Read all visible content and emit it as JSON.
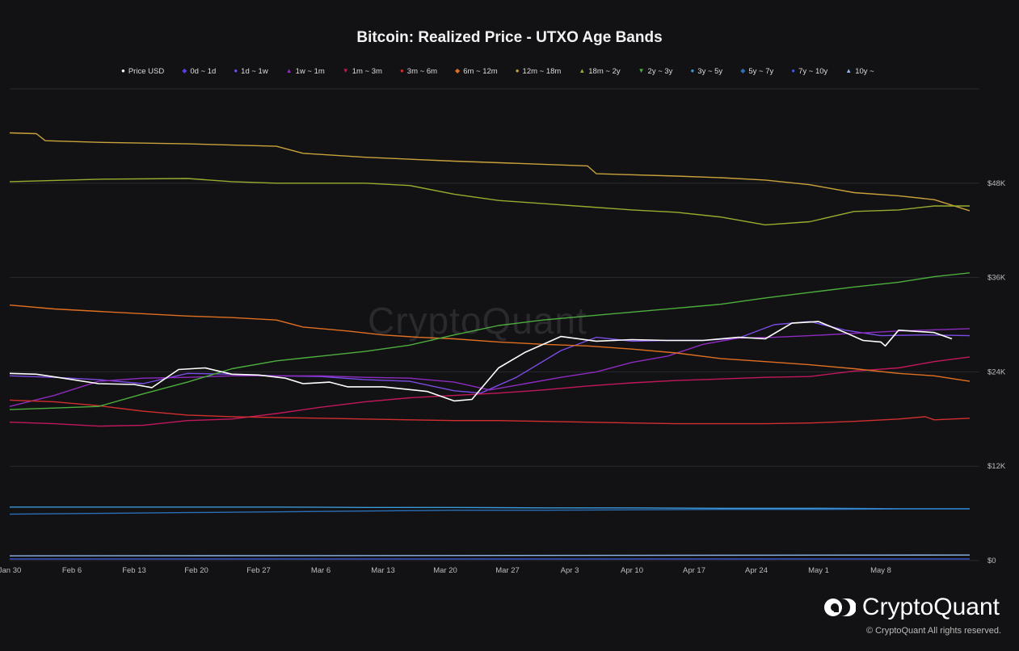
{
  "chart_data": {
    "type": "line",
    "title": "Bitcoin: Realized Price - UTXO Age Bands",
    "x_ticks": [
      "Jan 30",
      "Feb 6",
      "Feb 13",
      "Feb 20",
      "Feb 27",
      "Mar 6",
      "Mar 13",
      "Mar 20",
      "Mar 27",
      "Apr 3",
      "Apr 10",
      "Apr 17",
      "Apr 24",
      "May 1",
      "May 8"
    ],
    "y_ticks": [
      "$0",
      "$12K",
      "$24K",
      "$36K",
      "$48K"
    ],
    "ylim": [
      0,
      60000
    ],
    "x_range": [
      "Jan 30",
      "May 8"
    ],
    "grid": "horizontal",
    "legend_position": "top",
    "series": [
      {
        "name": "Price USD",
        "color": "#ffffff",
        "marker": "●",
        "values": [
          [
            0,
            23800
          ],
          [
            3,
            23700
          ],
          [
            6,
            23200
          ],
          [
            10,
            22500
          ],
          [
            14,
            22400
          ],
          [
            16,
            22000
          ],
          [
            19,
            24300
          ],
          [
            22,
            24500
          ],
          [
            25,
            23700
          ],
          [
            28,
            23600
          ],
          [
            31,
            23200
          ],
          [
            33,
            22500
          ],
          [
            36,
            22700
          ],
          [
            38,
            22100
          ],
          [
            42,
            22100
          ],
          [
            47,
            21500
          ],
          [
            50,
            20300
          ],
          [
            52,
            20500
          ],
          [
            55,
            24500
          ],
          [
            58,
            26500
          ],
          [
            62,
            28500
          ],
          [
            66,
            27900
          ],
          [
            70,
            28100
          ],
          [
            74,
            28000
          ],
          [
            78,
            28000
          ],
          [
            82,
            28400
          ],
          [
            85,
            28200
          ],
          [
            88,
            30200
          ],
          [
            91,
            30400
          ],
          [
            94,
            29000
          ],
          [
            96,
            28000
          ],
          [
            98,
            27800
          ],
          [
            100,
            29300
          ],
          [
            104,
            29000
          ],
          [
            106,
            28200
          ],
          [
            98.5,
            27300
          ]
        ]
      },
      {
        "name": "0d ~ 1d",
        "color": "#5b3fd8",
        "marker": "◆",
        "values": []
      },
      {
        "name": "1d ~ 1w",
        "color": "#7b4ce6",
        "marker": "●",
        "values": [
          [
            0,
            23500
          ],
          [
            5,
            23300
          ],
          [
            10,
            23000
          ],
          [
            15,
            22500
          ],
          [
            20,
            23800
          ],
          [
            25,
            23700
          ],
          [
            30,
            23500
          ],
          [
            35,
            23400
          ],
          [
            40,
            23000
          ],
          [
            45,
            22800
          ],
          [
            50,
            21600
          ],
          [
            53,
            21300
          ],
          [
            57,
            23300
          ],
          [
            62,
            26700
          ],
          [
            66,
            28400
          ],
          [
            70,
            27900
          ],
          [
            74,
            28000
          ],
          [
            78,
            28000
          ],
          [
            82,
            28300
          ],
          [
            86,
            30000
          ],
          [
            90,
            30400
          ],
          [
            94,
            29300
          ],
          [
            98,
            28600
          ],
          [
            103,
            28700
          ],
          [
            108,
            28600
          ]
        ]
      },
      {
        "name": "1w ~ 1m",
        "color": "#8e2bbf",
        "marker": "▲",
        "values": [
          [
            0,
            19600
          ],
          [
            5,
            21000
          ],
          [
            10,
            22800
          ],
          [
            15,
            23200
          ],
          [
            20,
            23300
          ],
          [
            25,
            23500
          ],
          [
            30,
            23500
          ],
          [
            35,
            23500
          ],
          [
            40,
            23300
          ],
          [
            45,
            23200
          ],
          [
            50,
            22700
          ],
          [
            54,
            21700
          ],
          [
            58,
            22500
          ],
          [
            62,
            23300
          ],
          [
            66,
            24000
          ],
          [
            70,
            25200
          ],
          [
            74,
            26000
          ],
          [
            78,
            27500
          ],
          [
            82,
            28300
          ],
          [
            86,
            28400
          ],
          [
            90,
            28600
          ],
          [
            95,
            28900
          ],
          [
            100,
            29200
          ],
          [
            108,
            29500
          ]
        ]
      },
      {
        "name": "1m ~ 3m",
        "color": "#c2185b",
        "marker": "▼",
        "values": [
          [
            0,
            17600
          ],
          [
            5,
            17400
          ],
          [
            10,
            17100
          ],
          [
            15,
            17200
          ],
          [
            20,
            17800
          ],
          [
            25,
            18000
          ],
          [
            30,
            18700
          ],
          [
            35,
            19500
          ],
          [
            40,
            20200
          ],
          [
            45,
            20700
          ],
          [
            50,
            21000
          ],
          [
            55,
            21300
          ],
          [
            60,
            21700
          ],
          [
            65,
            22200
          ],
          [
            70,
            22600
          ],
          [
            75,
            22900
          ],
          [
            80,
            23100
          ],
          [
            85,
            23300
          ],
          [
            90,
            23400
          ],
          [
            95,
            24100
          ],
          [
            100,
            24500
          ],
          [
            104,
            25300
          ],
          [
            108,
            25900
          ]
        ]
      },
      {
        "name": "3m ~ 6m",
        "color": "#d32f2f",
        "marker": "●",
        "values": [
          [
            0,
            20400
          ],
          [
            5,
            20200
          ],
          [
            10,
            19700
          ],
          [
            15,
            19000
          ],
          [
            20,
            18500
          ],
          [
            25,
            18300
          ],
          [
            30,
            18200
          ],
          [
            35,
            18100
          ],
          [
            40,
            18000
          ],
          [
            45,
            17900
          ],
          [
            50,
            17800
          ],
          [
            55,
            17800
          ],
          [
            60,
            17700
          ],
          [
            65,
            17600
          ],
          [
            70,
            17500
          ],
          [
            75,
            17400
          ],
          [
            80,
            17400
          ],
          [
            85,
            17400
          ],
          [
            90,
            17500
          ],
          [
            95,
            17700
          ],
          [
            100,
            18000
          ],
          [
            103,
            18300
          ],
          [
            104,
            17900
          ],
          [
            108,
            18100
          ]
        ]
      },
      {
        "name": "6m ~ 12m",
        "color": "#e07020",
        "marker": "◆",
        "values": [
          [
            0,
            32500
          ],
          [
            5,
            32000
          ],
          [
            10,
            31700
          ],
          [
            15,
            31400
          ],
          [
            20,
            31100
          ],
          [
            25,
            30900
          ],
          [
            30,
            30600
          ],
          [
            33,
            29700
          ],
          [
            38,
            29200
          ],
          [
            42,
            28700
          ],
          [
            46,
            28400
          ],
          [
            50,
            28200
          ],
          [
            55,
            27800
          ],
          [
            60,
            27500
          ],
          [
            65,
            27300
          ],
          [
            70,
            26900
          ],
          [
            75,
            26400
          ],
          [
            80,
            25700
          ],
          [
            85,
            25300
          ],
          [
            90,
            24900
          ],
          [
            95,
            24400
          ],
          [
            100,
            23800
          ],
          [
            104,
            23500
          ],
          [
            108,
            22800
          ]
        ]
      },
      {
        "name": "12m ~ 18m",
        "color": "#c9a23a",
        "marker": "●",
        "values": [
          [
            0,
            54400
          ],
          [
            3,
            54300
          ],
          [
            4,
            53400
          ],
          [
            10,
            53200
          ],
          [
            20,
            53000
          ],
          [
            30,
            52700
          ],
          [
            33,
            51800
          ],
          [
            40,
            51300
          ],
          [
            50,
            50800
          ],
          [
            60,
            50400
          ],
          [
            65,
            50200
          ],
          [
            66,
            49200
          ],
          [
            75,
            48900
          ],
          [
            80,
            48700
          ],
          [
            85,
            48400
          ],
          [
            90,
            47800
          ],
          [
            95,
            46800
          ],
          [
            100,
            46400
          ],
          [
            104,
            45900
          ],
          [
            108,
            44500
          ]
        ]
      },
      {
        "name": "18m ~ 2y",
        "color": "#9aab2e",
        "marker": "▲",
        "values": [
          [
            0,
            48200
          ],
          [
            10,
            48500
          ],
          [
            20,
            48600
          ],
          [
            25,
            48200
          ],
          [
            30,
            48000
          ],
          [
            40,
            48000
          ],
          [
            45,
            47700
          ],
          [
            50,
            46600
          ],
          [
            55,
            45800
          ],
          [
            60,
            45400
          ],
          [
            65,
            45000
          ],
          [
            70,
            44600
          ],
          [
            75,
            44300
          ],
          [
            80,
            43700
          ],
          [
            85,
            42700
          ],
          [
            90,
            43100
          ],
          [
            95,
            44400
          ],
          [
            100,
            44600
          ],
          [
            104,
            45100
          ],
          [
            108,
            45100
          ]
        ]
      },
      {
        "name": "2y ~ 3y",
        "color": "#4caf3c",
        "marker": "▼",
        "values": [
          [
            0,
            19200
          ],
          [
            5,
            19400
          ],
          [
            10,
            19600
          ],
          [
            15,
            21200
          ],
          [
            20,
            22700
          ],
          [
            25,
            24400
          ],
          [
            30,
            25400
          ],
          [
            35,
            26000
          ],
          [
            40,
            26600
          ],
          [
            45,
            27400
          ],
          [
            50,
            28700
          ],
          [
            55,
            29900
          ],
          [
            60,
            30600
          ],
          [
            65,
            31100
          ],
          [
            70,
            31600
          ],
          [
            75,
            32100
          ],
          [
            80,
            32600
          ],
          [
            85,
            33400
          ],
          [
            90,
            34100
          ],
          [
            95,
            34800
          ],
          [
            100,
            35400
          ],
          [
            104,
            36100
          ],
          [
            108,
            36600
          ]
        ]
      },
      {
        "name": "3y ~ 5y",
        "color": "#3a9ad9",
        "marker": "●",
        "values": [
          [
            0,
            6800
          ],
          [
            10,
            6800
          ],
          [
            20,
            6800
          ],
          [
            30,
            6800
          ],
          [
            40,
            6750
          ],
          [
            50,
            6750
          ],
          [
            60,
            6700
          ],
          [
            70,
            6700
          ],
          [
            80,
            6650
          ],
          [
            90,
            6650
          ],
          [
            100,
            6600
          ],
          [
            108,
            6600
          ]
        ]
      },
      {
        "name": "5y ~ 7y",
        "color": "#2a6fb8",
        "marker": "◆",
        "values": [
          [
            0,
            5900
          ],
          [
            10,
            6000
          ],
          [
            20,
            6100
          ],
          [
            30,
            6200
          ],
          [
            40,
            6300
          ],
          [
            50,
            6400
          ],
          [
            60,
            6400
          ],
          [
            70,
            6450
          ],
          [
            80,
            6500
          ],
          [
            90,
            6500
          ],
          [
            100,
            6550
          ],
          [
            108,
            6550
          ]
        ]
      },
      {
        "name": "7y ~ 10y",
        "color": "#3d5bd6",
        "marker": "●",
        "values": [
          [
            0,
            200
          ],
          [
            108,
            200
          ]
        ]
      },
      {
        "name": "10y ~",
        "color": "#8fb6e8",
        "marker": "▲",
        "values": [
          [
            0,
            600
          ],
          [
            108,
            700
          ]
        ]
      }
    ]
  },
  "watermark": "CryptoQuant",
  "brand": "CryptoQuant",
  "copyright": "© CryptoQuant All rights reserved."
}
